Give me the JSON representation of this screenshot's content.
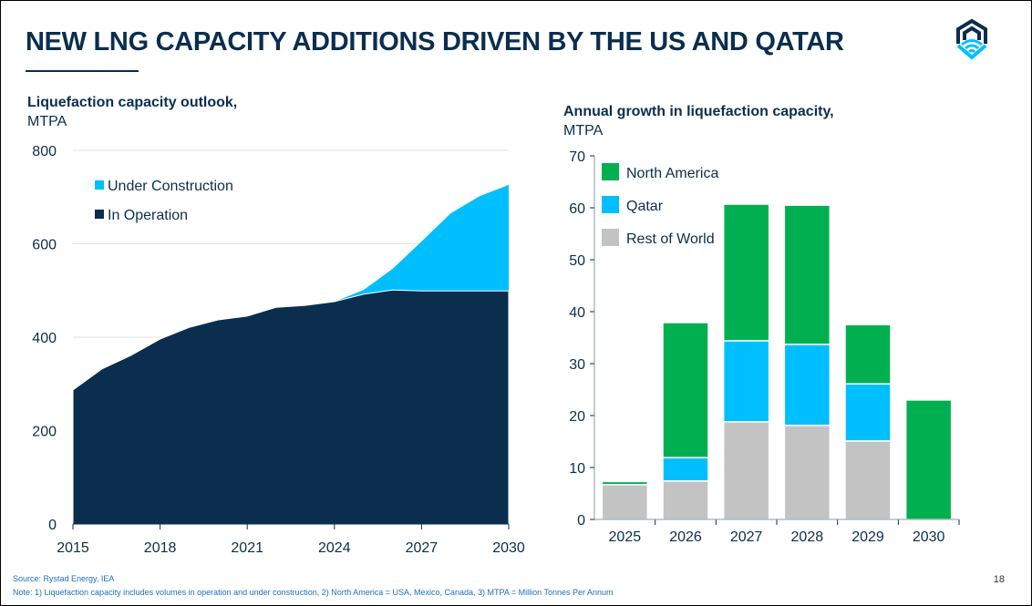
{
  "title": "NEW LNG CAPACITY ADDITIONS DRIVEN BY THE US AND QATAR",
  "logo": "hexagon-wave-logo",
  "footer": {
    "source": "Source: Rystad Energy, IEA",
    "note": "Note: 1) Liquefaction capacity includes volumes in operation and under construction, 2) North America = USA, Mexico, Canada, 3) MTPA = Million Tonnes Per Annum",
    "page": "18"
  },
  "chart_data": [
    {
      "type": "area",
      "title": "Liquefaction capacity outlook,",
      "subtitle": "MTPA",
      "stacked": true,
      "x": [
        2015,
        2016,
        2017,
        2018,
        2019,
        2020,
        2021,
        2022,
        2023,
        2024,
        2025,
        2026,
        2027,
        2028,
        2029,
        2030
      ],
      "xticks": [
        2015,
        2018,
        2021,
        2024,
        2027,
        2030
      ],
      "yticks": [
        0,
        200,
        400,
        600,
        800
      ],
      "ylim": [
        0,
        800
      ],
      "grid": "horizontal",
      "legend": "top-left",
      "series": [
        {
          "name": "In Operation",
          "color": "#0b2e4f",
          "values": [
            287,
            332,
            361,
            396,
            421,
            437,
            445,
            464,
            468,
            476,
            492,
            501,
            499,
            499,
            499,
            499
          ]
        },
        {
          "name": "Under Construction",
          "color": "#00bfff",
          "values": [
            0,
            0,
            0,
            0,
            0,
            0,
            0,
            0,
            0,
            0,
            9,
            45,
            106,
            166,
            203,
            227
          ]
        }
      ]
    },
    {
      "type": "bar",
      "stacked": true,
      "title": "Annual growth in liquefaction capacity,",
      "subtitle": "MTPA",
      "categories": [
        "2025",
        "2026",
        "2027",
        "2028",
        "2029",
        "2030"
      ],
      "yticks": [
        0,
        10,
        20,
        30,
        40,
        50,
        60,
        70
      ],
      "ylim": [
        0,
        70
      ],
      "legend": "top-left",
      "series": [
        {
          "name": "Rest of World",
          "color": "#c3c3c3",
          "values": [
            6.7,
            7.4,
            18.8,
            18.1,
            15.1,
            0
          ]
        },
        {
          "name": "Qatar",
          "color": "#00bfff",
          "values": [
            0,
            4.5,
            15.6,
            15.6,
            11,
            0
          ]
        },
        {
          "name": "North America",
          "color": "#00b050",
          "values": [
            0.6,
            26,
            26.3,
            26.8,
            11.4,
            23
          ]
        }
      ]
    }
  ]
}
